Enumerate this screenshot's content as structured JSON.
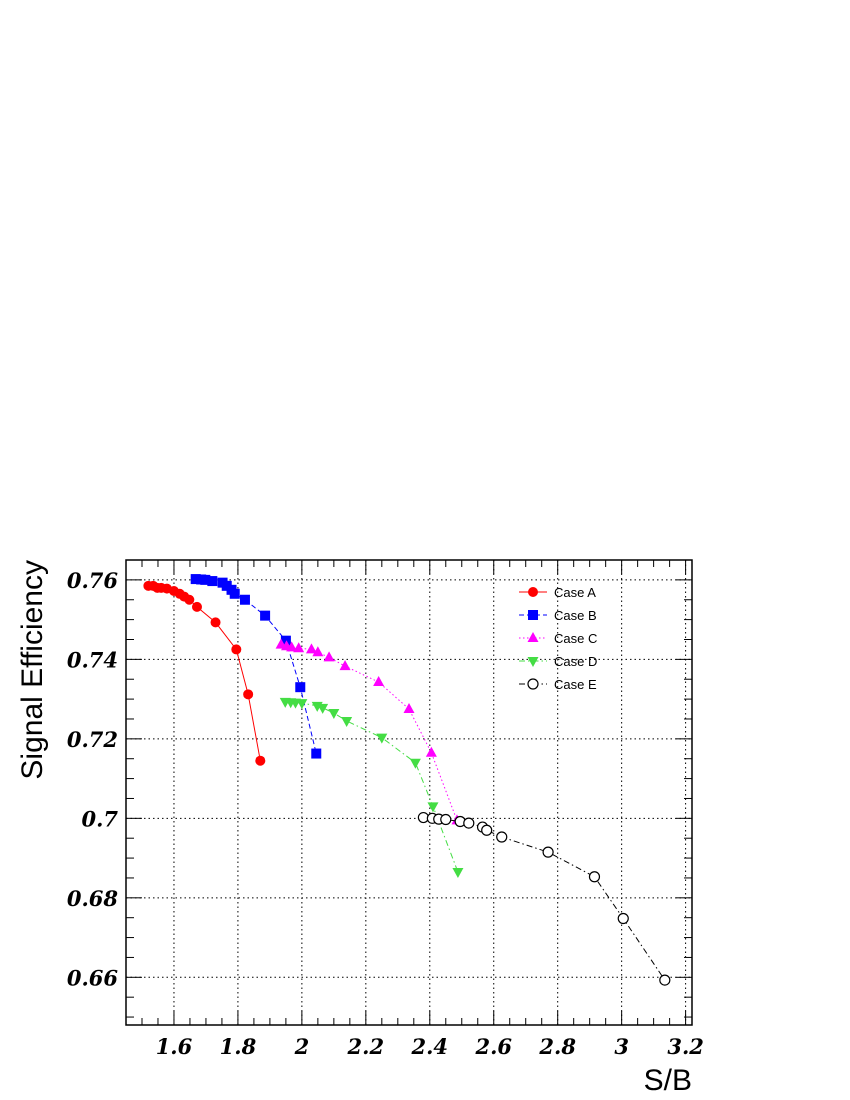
{
  "chart_data": {
    "type": "line",
    "xlabel": "S/B",
    "ylabel": "Signal Efficiency",
    "xlim": [
      1.45,
      3.22
    ],
    "ylim": [
      0.648,
      0.765
    ],
    "x_ticks": [
      "1.6",
      "1.8",
      "2",
      "2.2",
      "2.4",
      "2.6",
      "2.8",
      "3",
      "3.2"
    ],
    "y_ticks": [
      "0.66",
      "0.68",
      "0.7",
      "0.72",
      "0.74",
      "0.76"
    ],
    "grid": true,
    "legend_position": "top-right",
    "series": [
      {
        "name": "Case A",
        "color": "#ff0000",
        "marker": "filled-circle",
        "line": "solid",
        "points": [
          [
            1.52,
            0.7585
          ],
          [
            1.535,
            0.7585
          ],
          [
            1.548,
            0.758
          ],
          [
            1.56,
            0.758
          ],
          [
            1.578,
            0.7578
          ],
          [
            1.6,
            0.7572
          ],
          [
            1.618,
            0.7565
          ],
          [
            1.632,
            0.7558
          ],
          [
            1.648,
            0.755
          ],
          [
            1.672,
            0.7532
          ],
          [
            1.73,
            0.7493
          ],
          [
            1.795,
            0.7425
          ],
          [
            1.832,
            0.7312
          ],
          [
            1.87,
            0.7145
          ]
        ]
      },
      {
        "name": "Case B",
        "color": "#0000ff",
        "marker": "filled-square",
        "line": "dashed",
        "points": [
          [
            1.668,
            0.7602
          ],
          [
            1.685,
            0.7601
          ],
          [
            1.698,
            0.76
          ],
          [
            1.72,
            0.7597
          ],
          [
            1.752,
            0.7593
          ],
          [
            1.765,
            0.7585
          ],
          [
            1.78,
            0.7575
          ],
          [
            1.79,
            0.7565
          ],
          [
            1.822,
            0.755
          ],
          [
            1.885,
            0.751
          ],
          [
            1.95,
            0.7447
          ],
          [
            1.995,
            0.733
          ],
          [
            2.045,
            0.7163
          ]
        ]
      },
      {
        "name": "Case C",
        "color": "#ff00ff",
        "marker": "filled-triangle-up",
        "line": "dotted",
        "points": [
          [
            1.935,
            0.7437
          ],
          [
            1.952,
            0.7433
          ],
          [
            1.968,
            0.743
          ],
          [
            1.99,
            0.7428
          ],
          [
            2.03,
            0.7425
          ],
          [
            2.05,
            0.7418
          ],
          [
            2.085,
            0.7405
          ],
          [
            2.135,
            0.7383
          ],
          [
            2.24,
            0.7343
          ],
          [
            2.335,
            0.7275
          ],
          [
            2.405,
            0.7165
          ],
          [
            2.485,
            0.6995
          ]
        ]
      },
      {
        "name": "Case D",
        "color": "#44dd44",
        "marker": "filled-triangle-down",
        "line": "dash-dot",
        "points": [
          [
            1.948,
            0.7293
          ],
          [
            1.965,
            0.7292
          ],
          [
            1.98,
            0.7291
          ],
          [
            2.0,
            0.729
          ],
          [
            2.048,
            0.7283
          ],
          [
            2.065,
            0.7278
          ],
          [
            2.1,
            0.7265
          ],
          [
            2.14,
            0.7245
          ],
          [
            2.25,
            0.7203
          ],
          [
            2.355,
            0.714
          ],
          [
            2.41,
            0.703
          ],
          [
            2.488,
            0.6865
          ]
        ]
      },
      {
        "name": "Case E",
        "color": "#000000",
        "marker": "open-circle",
        "line": "dash-dot",
        "points": [
          [
            2.38,
            0.7002
          ],
          [
            2.408,
            0.7
          ],
          [
            2.428,
            0.6998
          ],
          [
            2.45,
            0.6997
          ],
          [
            2.495,
            0.6992
          ],
          [
            2.522,
            0.6988
          ],
          [
            2.565,
            0.6978
          ],
          [
            2.578,
            0.697
          ],
          [
            2.625,
            0.6953
          ],
          [
            2.77,
            0.6915
          ],
          [
            2.915,
            0.6853
          ],
          [
            3.005,
            0.6748
          ],
          [
            3.135,
            0.6593
          ]
        ]
      }
    ]
  }
}
